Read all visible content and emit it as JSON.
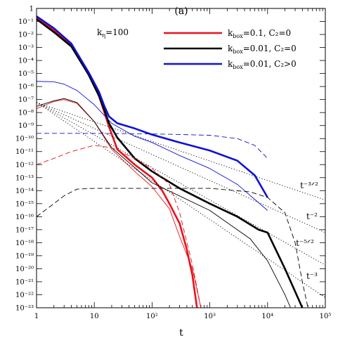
{
  "chart_data": {
    "type": "line",
    "title": "(a)",
    "xlabel": "t",
    "ylabel": "",
    "x_scale": "log",
    "y_scale": "log",
    "xlim": [
      1,
      100000
    ],
    "ylim": [
      1e-23,
      1
    ],
    "x_ticks": [
      "1",
      "10",
      "10²",
      "10³",
      "10⁴",
      "10⁵"
    ],
    "y_ticks": [
      "1",
      "10⁻¹",
      "10⁻²",
      "10⁻³",
      "10⁻⁴",
      "10⁻⁵",
      "10⁻⁶",
      "10⁻⁷",
      "10⁻⁸",
      "10⁻⁹",
      "10⁻¹⁰",
      "10⁻¹¹",
      "10⁻¹²",
      "10⁻¹³",
      "10⁻¹⁴",
      "10⁻¹⁵",
      "10⁻¹⁶",
      "10⁻¹⁷",
      "10⁻¹⁸",
      "10⁻¹⁹",
      "10⁻²⁰",
      "10⁻²¹",
      "10⁻²²",
      "10⁻²³"
    ],
    "annotation": {
      "main": "k",
      "sub": "η",
      "rest": "=100"
    },
    "legend_position": "top-right",
    "legend": [
      {
        "k": "k",
        "sub": "box",
        "rest": "=0.1,   C₂=0",
        "color": "#e8121b"
      },
      {
        "k": "k",
        "sub": "box",
        "rest": "=0.01,  C₂=0",
        "color": "#000000"
      },
      {
        "k": "k",
        "sub": "box",
        "rest": "=0.01,  C₂>0",
        "color": "#1010d8"
      }
    ],
    "power_law_labels": [
      "t⁻³ᐟ²",
      "t⁻²",
      "t⁻⁵ᐟ²",
      "t⁻³"
    ],
    "series": [
      {
        "color": "#e8121b",
        "style": "solid",
        "width": 2.6,
        "points": [
          [
            1,
            0.2
          ],
          [
            2,
            0.02
          ],
          [
            4,
            0.0015
          ],
          [
            8,
            8e-06
          ],
          [
            12,
            2e-07
          ],
          [
            15,
            1e-08
          ],
          [
            18,
            8e-10
          ],
          [
            25,
            1.5e-11
          ],
          [
            50,
            1e-12
          ],
          [
            100,
            1e-13
          ],
          [
            150,
            1e-14
          ],
          [
            200,
            1e-15
          ],
          [
            300,
            3e-17
          ],
          [
            400,
            3e-19
          ],
          [
            500,
            3e-21
          ],
          [
            600,
            1e-23
          ]
        ]
      },
      {
        "color": "#000000",
        "style": "solid",
        "width": 2.6,
        "points": [
          [
            1,
            0.15
          ],
          [
            2,
            0.015
          ],
          [
            4,
            0.0012
          ],
          [
            8,
            8e-06
          ],
          [
            12,
            2e-07
          ],
          [
            15,
            1.5e-08
          ],
          [
            18,
            1.5e-09
          ],
          [
            25,
            1.2e-10
          ],
          [
            50,
            3e-12
          ],
          [
            100,
            3e-13
          ],
          [
            300,
            1.5e-14
          ],
          [
            1000,
            1e-15
          ],
          [
            3000,
            1e-16
          ],
          [
            7000,
            1e-17
          ],
          [
            10000,
            6e-18
          ],
          [
            20000,
            1e-20
          ],
          [
            40000,
            1e-23
          ]
        ]
      },
      {
        "color": "#1010d8",
        "style": "solid",
        "width": 2.6,
        "points": [
          [
            1,
            0.25
          ],
          [
            2,
            0.03
          ],
          [
            4,
            0.002
          ],
          [
            8,
            1.2e-05
          ],
          [
            12,
            4e-07
          ],
          [
            15,
            3e-08
          ],
          [
            18,
            5e-09
          ],
          [
            25,
            1.5e-09
          ],
          [
            50,
            6e-10
          ],
          [
            100,
            2e-10
          ],
          [
            300,
            5e-11
          ],
          [
            1000,
            1.2e-11
          ],
          [
            3000,
            2e-12
          ],
          [
            6000,
            1.5e-13
          ],
          [
            10000,
            3e-15
          ]
        ]
      },
      {
        "color": "#e8121b",
        "style": "solid",
        "width": 0.9,
        "points": [
          [
            1,
            2e-08
          ],
          [
            2,
            7e-08
          ],
          [
            3,
            1e-07
          ],
          [
            5,
            5e-08
          ],
          [
            10,
            2e-09
          ],
          [
            20,
            1.5e-11
          ],
          [
            50,
            3e-13
          ],
          [
            100,
            2e-14
          ],
          [
            200,
            4e-16
          ],
          [
            300,
            3e-18
          ],
          [
            500,
            1e-20
          ],
          [
            700,
            1e-23
          ]
        ]
      },
      {
        "color": "#000000",
        "style": "solid",
        "width": 0.9,
        "points": [
          [
            1,
            3e-08
          ],
          [
            2,
            8e-08
          ],
          [
            3,
            1.2e-07
          ],
          [
            5,
            6e-08
          ],
          [
            10,
            2e-09
          ],
          [
            20,
            2e-11
          ],
          [
            50,
            6e-13
          ],
          [
            100,
            4e-14
          ],
          [
            1000,
            3e-16
          ],
          [
            5000,
            2e-18
          ],
          [
            10000,
            4e-20
          ],
          [
            20000,
            1e-22
          ],
          [
            25000,
            1e-23
          ]
        ]
      },
      {
        "color": "#1010d8",
        "style": "solid",
        "width": 0.9,
        "points": [
          [
            1,
            2.5e-06
          ],
          [
            2,
            2.3e-06
          ],
          [
            3,
            1.5e-06
          ],
          [
            5,
            5e-07
          ],
          [
            10,
            4e-08
          ],
          [
            20,
            1.5e-09
          ],
          [
            50,
            1.5e-10
          ],
          [
            100,
            5e-11
          ],
          [
            300,
            5e-12
          ],
          [
            1000,
            5e-13
          ],
          [
            3000,
            3e-14
          ],
          [
            10000,
            3e-16
          ]
        ]
      },
      {
        "color": "#e8121b",
        "style": "dashed",
        "width": 0.9,
        "points": [
          [
            1,
            1e-12
          ],
          [
            2,
            3e-12
          ],
          [
            4,
            1e-11
          ],
          [
            10,
            3e-11
          ],
          [
            20,
            2e-11
          ],
          [
            50,
            3e-12
          ],
          [
            100,
            5e-13
          ],
          [
            200,
            3e-14
          ],
          [
            300,
            2e-16
          ],
          [
            500,
            2e-20
          ],
          [
            700,
            1e-23
          ]
        ]
      },
      {
        "color": "#000000",
        "style": "dashed",
        "width": 0.9,
        "points": [
          [
            1,
            1e-16
          ],
          [
            2,
            1e-15
          ],
          [
            3,
            4e-15
          ],
          [
            5,
            1.3e-14
          ],
          [
            10,
            1.5e-14
          ],
          [
            100,
            1.5e-14
          ],
          [
            1000,
            1.5e-14
          ],
          [
            5000,
            8e-15
          ],
          [
            10000,
            3e-15
          ],
          [
            20000,
            2e-16
          ],
          [
            30000,
            1e-18
          ],
          [
            40000,
            1e-21
          ],
          [
            50000,
            1e-23
          ]
        ]
      },
      {
        "color": "#1010d8",
        "style": "dashed",
        "width": 0.9,
        "points": [
          [
            1,
            2.5e-10
          ],
          [
            10,
            2.5e-10
          ],
          [
            100,
            2.3e-10
          ],
          [
            1000,
            1.8e-10
          ],
          [
            3000,
            1e-10
          ],
          [
            6000,
            3e-11
          ],
          [
            10000,
            3e-12
          ]
        ]
      },
      {
        "color": "#000000",
        "style": "dotted",
        "width": 0.9,
        "points": [
          [
            1,
            6e-08
          ],
          [
            100000,
            1.9e-15
          ]
        ]
      },
      {
        "color": "#000000",
        "style": "dotted",
        "width": 0.9,
        "points": [
          [
            1,
            6e-08
          ],
          [
            100000,
            6e-18
          ]
        ]
      },
      {
        "color": "#000000",
        "style": "dotted",
        "width": 0.9,
        "points": [
          [
            1,
            6e-08
          ],
          [
            100000,
            1.9e-20
          ]
        ]
      },
      {
        "color": "#000000",
        "style": "dotted",
        "width": 0.9,
        "points": [
          [
            1,
            6e-08
          ],
          [
            100000,
            6e-23
          ]
        ]
      }
    ]
  }
}
